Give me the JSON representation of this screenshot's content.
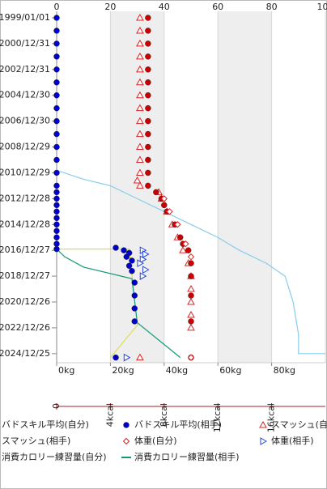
{
  "chart_data": {
    "type": "scatter",
    "ylim": [
      1999,
      2025.7
    ],
    "yticks": [
      {
        "value": 1999,
        "label": "1999/01/01"
      },
      {
        "value": 2001,
        "label": "2000/12/31"
      },
      {
        "value": 2003,
        "label": "2002/12/31"
      },
      {
        "value": 2005,
        "label": "2004/12/30"
      },
      {
        "value": 2007,
        "label": "2006/12/30"
      },
      {
        "value": 2009,
        "label": "2008/12/29"
      },
      {
        "value": 2011,
        "label": "2010/12/29"
      },
      {
        "value": 2013,
        "label": "2012/12/28"
      },
      {
        "value": 2015,
        "label": "2014/12/28"
      },
      {
        "value": 2017,
        "label": "2016/12/27"
      },
      {
        "value": 2019,
        "label": "2018/12/27"
      },
      {
        "value": 2021,
        "label": "2020/12/26"
      },
      {
        "value": 2023,
        "label": "2022/12/26"
      },
      {
        "value": 2025,
        "label": "2024/12/25"
      }
    ],
    "xlim": [
      0,
      100
    ],
    "xticks": [
      0,
      20,
      40,
      60,
      80,
      100
    ],
    "x_bottom_ticks": [
      {
        "value": 0,
        "label": "0kg"
      },
      {
        "value": 20,
        "label": "20kg"
      },
      {
        "value": 40,
        "label": "40kg"
      },
      {
        "value": 60,
        "label": "60kg"
      },
      {
        "value": 80,
        "label": "80kg"
      }
    ],
    "x2lim": [
      0,
      20
    ],
    "x2ticks": [
      0,
      {
        "value": 4,
        "label": "4kcal"
      },
      {
        "value": 8,
        "label": "8kcal"
      },
      {
        "value": 12,
        "label": "12kcal"
      },
      {
        "value": 16,
        "label": "16kcal"
      }
    ],
    "shaded_bands": [
      [
        20,
        40
      ],
      [
        60,
        80
      ]
    ],
    "grid": true,
    "series": [
      {
        "name": "バドスキル平均(自分)",
        "color": "#0000cc",
        "marker": "circle",
        "dates": [
          1999,
          2000,
          2001,
          2002,
          2003,
          2004,
          2005,
          2006,
          2007,
          2008,
          2009,
          2010,
          2011,
          2012,
          2012.5,
          2013,
          2013.5,
          2014,
          2014.5,
          2015,
          2015.5,
          2016,
          2016.5,
          2016.9
        ],
        "values": [
          0,
          0,
          0,
          0,
          0,
          0,
          0,
          0,
          0,
          0,
          0,
          0,
          0,
          0,
          0,
          0,
          0,
          0,
          0,
          0,
          0,
          0,
          0,
          0
        ]
      },
      {
        "name": "バドスキル平均(相手)",
        "color": "#0000cc",
        "marker": "circle",
        "dates": [
          2016.8,
          2017,
          2017.2,
          2017.5,
          2017.8,
          2018.2,
          2018.6,
          2019.5,
          2020.5,
          2021.5,
          2022.5,
          2025.3
        ],
        "values": [
          22,
          25,
          27,
          26,
          28,
          27,
          28,
          29,
          29,
          29,
          29,
          22
        ]
      },
      {
        "name": "スマッシュ(自分)",
        "color": "#dd2222",
        "marker": "triangle",
        "dates": [
          1999,
          2000,
          2001,
          2002,
          2003,
          2004,
          2005,
          2006,
          2007,
          2008,
          2009,
          2010,
          2011,
          2011.6,
          2012,
          2012.5,
          2013,
          2014,
          2015,
          2016,
          2017,
          2018,
          2019,
          2020,
          2021,
          2022,
          2023,
          2025.3
        ],
        "values": [
          31,
          31,
          31,
          31,
          31,
          31,
          31,
          31,
          31,
          31,
          31,
          31,
          31,
          30,
          31,
          38,
          39,
          41,
          43,
          45,
          47,
          49,
          50,
          50,
          50,
          50,
          50,
          31
        ]
      },
      {
        "name": "スマッシュ(相手)",
        "color": "#cc0000",
        "marker": "circle",
        "dates": [
          1999,
          2000,
          2001,
          2002,
          2003,
          2004,
          2005,
          2006,
          2007,
          2008,
          2009,
          2010,
          2011,
          2012,
          2012.5,
          2013,
          2013.5,
          2014,
          2015,
          2016,
          2016.5,
          2017,
          2018,
          2019,
          2020.5,
          2022.5,
          2025.3
        ],
        "values": [
          34,
          34,
          34,
          34,
          34,
          34,
          34,
          34,
          34,
          34,
          34,
          34,
          34,
          34,
          37,
          39,
          40,
          41,
          44,
          46,
          47,
          49,
          50,
          50,
          50,
          50,
          50
        ]
      },
      {
        "name": "体重(自分)",
        "color": "#dd2222",
        "marker": "diamond",
        "dates": [
          2013,
          2014,
          2015,
          2016.5,
          2017.5,
          2025.3
        ],
        "values": [
          40,
          42,
          45,
          48,
          50,
          50
        ]
      },
      {
        "name": "体重(相手)",
        "color": "#2244dd",
        "marker": "triangle-right",
        "dates": [
          2017,
          2017.3,
          2017.7,
          2018,
          2018.5,
          2019,
          2025.3
        ],
        "values": [
          32,
          33,
          32,
          31,
          33,
          32,
          26
        ]
      },
      {
        "name": "消費カロリー練習量(自分)",
        "color": "#dddd55",
        "marker": "line",
        "axis": "x2",
        "dates": [
          2016.9,
          2016.9,
          2022.8,
          2025.3
        ],
        "values": [
          0,
          5.4,
          6,
          4
        ]
      },
      {
        "name": "消費カロリー練習量(相手)",
        "color": "#119977",
        "marker": "line",
        "axis": "x2",
        "dates": [
          2016.9,
          2017.5,
          2018.3,
          2019.2,
          2022.6,
          2025.3
        ],
        "values": [
          0,
          0.6,
          2,
          5.6,
          6,
          9.2
        ]
      },
      {
        "color": "#88ccee",
        "marker": "line",
        "dates": [
          2010.8,
          2011.5,
          2012,
          2013,
          2014,
          2015,
          2016,
          2017,
          2018,
          2019,
          2021,
          2023.5,
          2025,
          2025
        ],
        "values": [
          0,
          10,
          20,
          30,
          40,
          50,
          60,
          68,
          78,
          85,
          88,
          90,
          90,
          100
        ]
      }
    ]
  }
}
